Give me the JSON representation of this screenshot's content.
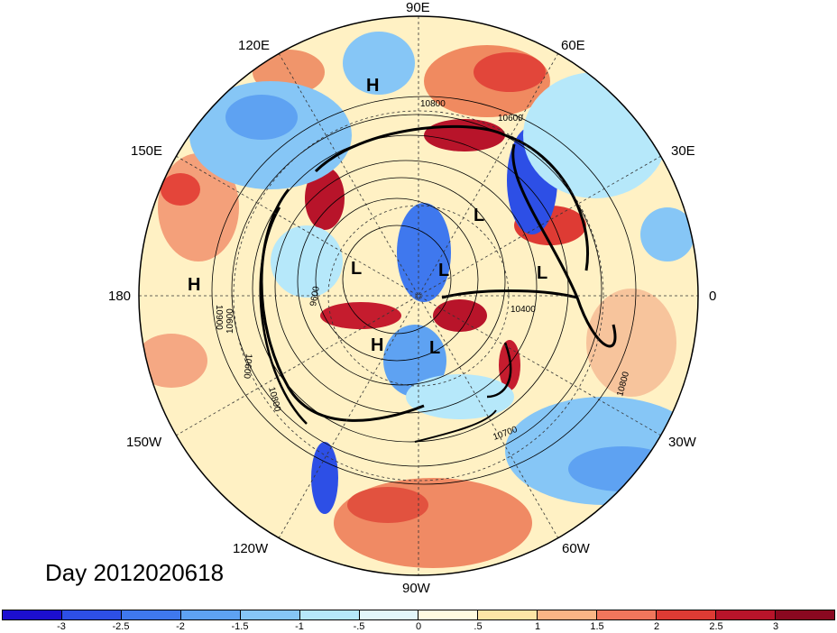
{
  "title": "Day 2012020618",
  "longitude_labels": {
    "n90e": "90E",
    "n60e": "60E",
    "n30e": "30E",
    "e0": "0",
    "s30w": "30W",
    "s60w": "60W",
    "s90w": "90W",
    "s120w": "120W",
    "s150w": "150W",
    "w180": "180",
    "n150e": "150E",
    "n120e": "120E"
  },
  "pressure_systems": [
    {
      "label": "H",
      "name": "high-siberia"
    },
    {
      "label": "H",
      "name": "high-pacific"
    },
    {
      "label": "H",
      "name": "high-canada"
    },
    {
      "label": "L",
      "name": "low-barents"
    },
    {
      "label": "L",
      "name": "low-arctic-east"
    },
    {
      "label": "L",
      "name": "low-arctic-center"
    },
    {
      "label": "L",
      "name": "low-scandinavia"
    },
    {
      "label": "L",
      "name": "low-greenland"
    }
  ],
  "contour_labels": [
    "10800",
    "10600",
    "9600",
    "10900",
    "10600",
    "10900",
    "10800",
    "10400",
    "10800",
    "10700"
  ],
  "colorbar": {
    "ticks": [
      "-3",
      "-2.5",
      "-2",
      "-1.5",
      "-1",
      "-.5",
      "0",
      ".5",
      "1",
      "1.5",
      "2",
      "2.5",
      "3"
    ],
    "colors": [
      "#1c0fd0",
      "#2d4fe6",
      "#3f78ee",
      "#5ea2f2",
      "#86c6f6",
      "#b6e8fa",
      "#e2f6fb",
      "#fffbe0",
      "#fde5a6",
      "#f9b585",
      "#f0765c",
      "#de3b34",
      "#b8142a",
      "#8a0820"
    ]
  }
}
